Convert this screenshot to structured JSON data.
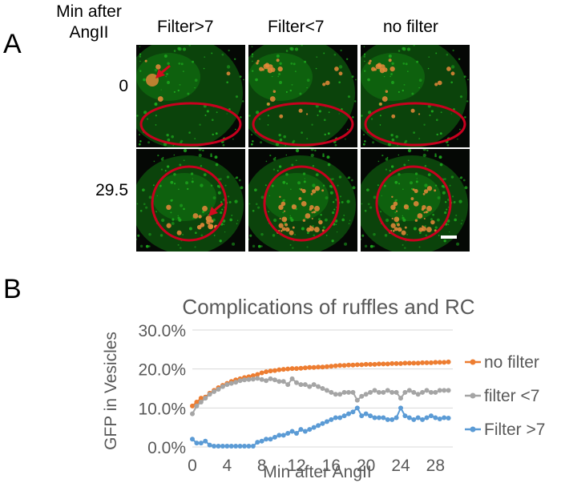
{
  "panel_a": {
    "letter": "A",
    "row_header": "Min after AngII",
    "columns": [
      "Filter>7",
      "Filter<7",
      "no filter"
    ],
    "rows": [
      "0",
      "29.5"
    ],
    "colors": {
      "cell_green": "#1fae1f",
      "vesicle": "#e88a3a",
      "ellipse": "#c8001e",
      "arrow": "#d20a1e",
      "scalebar": "#ffffff"
    }
  },
  "panel_b": {
    "letter": "B"
  },
  "chart_data": {
    "type": "line",
    "title": "Complications of ruffles and RC",
    "xlabel": "Min after AngII",
    "ylabel": "GFP in Vesicles",
    "xlim": [
      0,
      30
    ],
    "ylim": [
      0,
      0.3
    ],
    "xticks": [
      0,
      4,
      8,
      12,
      16,
      20,
      24,
      28
    ],
    "yticks": [
      0.0,
      0.1,
      0.2,
      0.3
    ],
    "ytick_labels": [
      "0.0%",
      "10.0%",
      "20.0%",
      "30.0%"
    ],
    "grid": true,
    "legend_position": "right",
    "x": [
      0,
      0.5,
      1,
      1.5,
      2,
      2.5,
      3,
      3.5,
      4,
      4.5,
      5,
      5.5,
      6,
      6.5,
      7,
      7.5,
      8,
      8.5,
      9,
      9.5,
      10,
      10.5,
      11,
      11.5,
      12,
      12.5,
      13,
      13.5,
      14,
      14.5,
      15,
      15.5,
      16,
      16.5,
      17,
      17.5,
      18,
      18.5,
      19,
      19.5,
      20,
      20.5,
      21,
      21.5,
      22,
      22.5,
      23,
      23.5,
      24,
      24.5,
      25,
      25.5,
      26,
      26.5,
      27,
      27.5,
      28,
      28.5,
      29,
      29.5
    ],
    "series": [
      {
        "name": "no filter",
        "color": "#ed7d31",
        "values": [
          0.105,
          0.115,
          0.125,
          0.128,
          0.138,
          0.145,
          0.152,
          0.158,
          0.163,
          0.168,
          0.172,
          0.175,
          0.178,
          0.18,
          0.183,
          0.186,
          0.19,
          0.193,
          0.195,
          0.196,
          0.198,
          0.199,
          0.2,
          0.201,
          0.201,
          0.202,
          0.203,
          0.204,
          0.204,
          0.205,
          0.205,
          0.206,
          0.207,
          0.208,
          0.209,
          0.209,
          0.21,
          0.21,
          0.211,
          0.211,
          0.212,
          0.212,
          0.212,
          0.213,
          0.213,
          0.213,
          0.214,
          0.214,
          0.214,
          0.215,
          0.215,
          0.215,
          0.215,
          0.216,
          0.216,
          0.216,
          0.217,
          0.217,
          0.217,
          0.218
        ]
      },
      {
        "name": "filter <7",
        "color": "#a5a5a5",
        "values": [
          0.085,
          0.105,
          0.115,
          0.125,
          0.135,
          0.142,
          0.148,
          0.155,
          0.16,
          0.163,
          0.166,
          0.17,
          0.172,
          0.173,
          0.174,
          0.176,
          0.173,
          0.17,
          0.175,
          0.172,
          0.168,
          0.168,
          0.16,
          0.175,
          0.165,
          0.16,
          0.16,
          0.155,
          0.16,
          0.155,
          0.15,
          0.145,
          0.14,
          0.135,
          0.135,
          0.14,
          0.14,
          0.14,
          0.12,
          0.13,
          0.135,
          0.14,
          0.145,
          0.14,
          0.14,
          0.145,
          0.14,
          0.14,
          0.125,
          0.14,
          0.145,
          0.14,
          0.135,
          0.14,
          0.145,
          0.14,
          0.14,
          0.145,
          0.145,
          0.145
        ]
      },
      {
        "name": "Filter >7",
        "color": "#5b9bd5",
        "values": [
          0.02,
          0.01,
          0.01,
          0.015,
          0.005,
          0.002,
          0.002,
          0.002,
          0.002,
          0.002,
          0.002,
          0.002,
          0.002,
          0.002,
          0.002,
          0.012,
          0.015,
          0.02,
          0.02,
          0.025,
          0.03,
          0.03,
          0.035,
          0.04,
          0.035,
          0.045,
          0.04,
          0.045,
          0.05,
          0.055,
          0.06,
          0.065,
          0.07,
          0.075,
          0.075,
          0.08,
          0.085,
          0.09,
          0.1,
          0.08,
          0.085,
          0.08,
          0.075,
          0.075,
          0.075,
          0.07,
          0.07,
          0.075,
          0.1,
          0.08,
          0.075,
          0.07,
          0.075,
          0.07,
          0.075,
          0.08,
          0.075,
          0.072,
          0.075,
          0.074
        ]
      }
    ]
  }
}
